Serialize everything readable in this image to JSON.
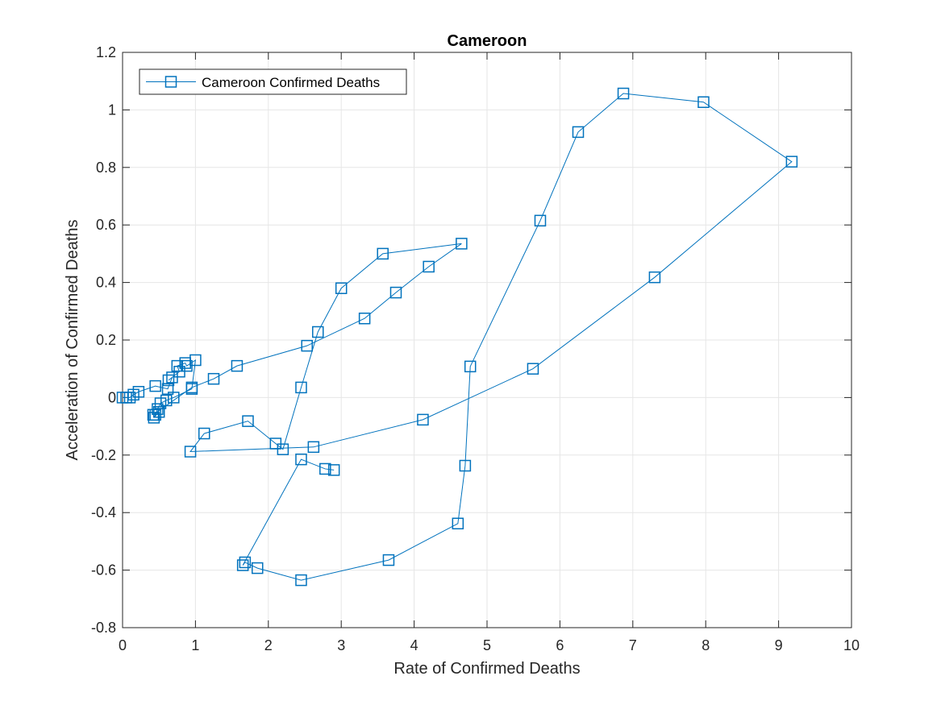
{
  "chart_data": {
    "type": "line",
    "title": "Cameroon",
    "xlabel": "Rate of Confirmed Deaths",
    "ylabel": "Acceleration of Confirmed Deaths",
    "xlim": [
      0,
      10
    ],
    "ylim": [
      -0.8,
      1.2
    ],
    "xticks": [
      "0",
      "1",
      "2",
      "3",
      "4",
      "5",
      "6",
      "7",
      "8",
      "9",
      "10"
    ],
    "yticks": [
      "-0.8",
      "-0.6",
      "-0.4",
      "-0.2",
      "0",
      "0.2",
      "0.4",
      "0.6",
      "0.8",
      "1",
      "1.2"
    ],
    "grid": true,
    "legend_position": "top-left",
    "series": [
      {
        "name": "Cameroon Confirmed Deaths",
        "color": "#0072BD",
        "marker": "square",
        "points": [
          [
            0.0,
            0.0
          ],
          [
            0.05,
            0.0
          ],
          [
            0.1,
            0.0
          ],
          [
            0.15,
            0.01
          ],
          [
            0.22,
            0.02
          ],
          [
            0.45,
            0.04
          ],
          [
            0.62,
            0.03
          ],
          [
            0.68,
            0.07
          ],
          [
            0.63,
            0.06
          ],
          [
            0.78,
            0.09
          ],
          [
            0.75,
            0.11
          ],
          [
            0.86,
            0.12
          ],
          [
            0.88,
            0.11
          ],
          [
            1.0,
            0.13
          ],
          [
            0.95,
            0.03
          ],
          [
            0.7,
            0.0
          ],
          [
            0.6,
            -0.01
          ],
          [
            0.52,
            -0.02
          ],
          [
            0.48,
            -0.04
          ],
          [
            0.45,
            -0.06
          ],
          [
            0.43,
            -0.07
          ],
          [
            0.5,
            -0.05
          ],
          [
            0.42,
            -0.06
          ],
          [
            0.95,
            0.035
          ],
          [
            1.25,
            0.065
          ],
          [
            1.57,
            0.11
          ],
          [
            2.53,
            0.18
          ],
          [
            3.32,
            0.275
          ],
          [
            3.75,
            0.365
          ],
          [
            4.2,
            0.455
          ],
          [
            4.65,
            0.535
          ],
          [
            3.57,
            0.5
          ],
          [
            3.0,
            0.38
          ],
          [
            2.68,
            0.228
          ],
          [
            2.45,
            0.035
          ],
          [
            2.2,
            -0.18
          ],
          [
            2.1,
            -0.16
          ],
          [
            1.72,
            -0.082
          ],
          [
            1.12,
            -0.125
          ],
          [
            0.93,
            -0.188
          ],
          [
            2.62,
            -0.172
          ],
          [
            4.12,
            -0.077
          ],
          [
            5.63,
            0.1
          ],
          [
            7.3,
            0.418
          ],
          [
            9.18,
            0.82
          ],
          [
            7.97,
            1.027
          ],
          [
            6.87,
            1.057
          ],
          [
            6.25,
            0.923
          ],
          [
            5.73,
            0.615
          ],
          [
            4.77,
            0.108
          ],
          [
            4.7,
            -0.237
          ],
          [
            4.6,
            -0.438
          ],
          [
            3.65,
            -0.565
          ],
          [
            2.45,
            -0.635
          ],
          [
            1.85,
            -0.593
          ],
          [
            1.68,
            -0.573
          ],
          [
            1.65,
            -0.583
          ],
          [
            2.45,
            -0.215
          ],
          [
            2.78,
            -0.248
          ],
          [
            2.9,
            -0.252
          ]
        ]
      }
    ]
  }
}
